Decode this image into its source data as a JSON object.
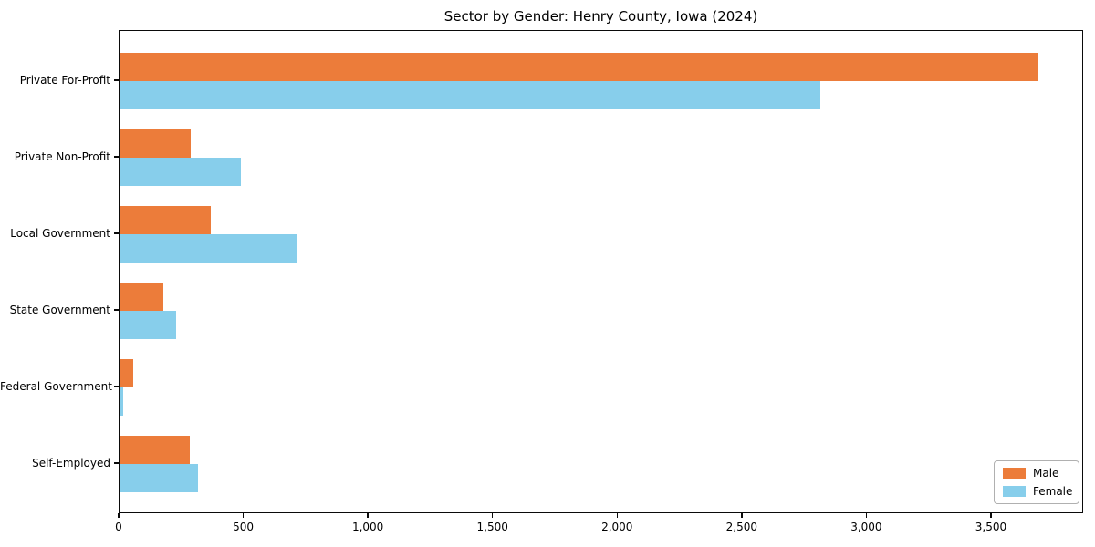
{
  "chart_data": {
    "type": "bar",
    "orientation": "horizontal",
    "title": "Sector by Gender: Henry County, Iowa (2024)",
    "categories": [
      "Private For-Profit",
      "Private Non-Profit",
      "Local Government",
      "State Government",
      "Federal Government",
      "Self-Employed"
    ],
    "series": [
      {
        "name": "Male",
        "color": "#ec7c3a",
        "values": [
          3685,
          285,
          365,
          175,
          55,
          280
        ]
      },
      {
        "name": "Female",
        "color": "#87ceeb",
        "values": [
          2810,
          485,
          710,
          225,
          15,
          315
        ]
      }
    ],
    "xlabel": "",
    "ylabel": "",
    "xlim": [
      0,
      3870
    ],
    "xticks": [
      0,
      500,
      1000,
      1500,
      2000,
      2500,
      3000,
      3500
    ],
    "xtick_labels": [
      "0",
      "500",
      "1,000",
      "1,500",
      "2,000",
      "2,500",
      "3,000",
      "3,500"
    ],
    "grid": false,
    "legend": {
      "position": "lower-right",
      "entries": [
        "Male",
        "Female"
      ]
    },
    "colors": {
      "spine": "#0a0a0a",
      "text": "#000000",
      "background": "#ffffff"
    }
  }
}
